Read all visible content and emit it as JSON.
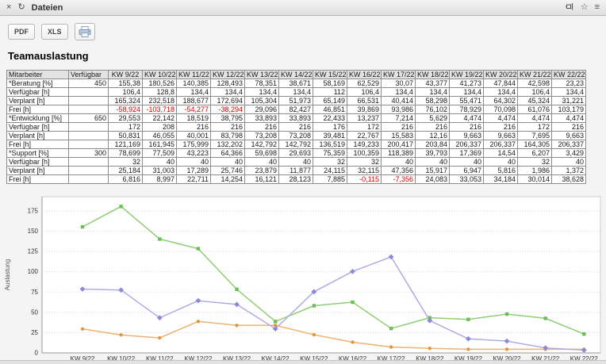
{
  "window": {
    "title": "Dateien"
  },
  "icons": {
    "close": "×",
    "refresh": "↻",
    "star": "☆",
    "menu": "≡"
  },
  "toolbar": {
    "pdf_label": "PDF",
    "xls_label": "XLS"
  },
  "page": {
    "title": "Teamauslastung"
  },
  "table": {
    "columns": [
      "Mitarbeiter",
      "Verfügbar",
      "KW 9/22",
      "KW 10/22",
      "KW 11/22",
      "KW 12/22",
      "KW 13/22",
      "KW 14/22",
      "KW 15/22",
      "KW 16/22",
      "KW 17/22",
      "KW 18/22",
      "KW 19/22",
      "KW 20/22",
      "KW 21/22",
      "KW 22/22"
    ],
    "rows": [
      {
        "label": "*Beratung [%]",
        "available": "450",
        "values": [
          "155,38",
          "180,526",
          "140,385",
          "128,493",
          "78,351",
          "38,671",
          "58,169",
          "62,529",
          "30,07",
          "43,377",
          "41,273",
          "47,844",
          "42,598",
          "23,23"
        ]
      },
      {
        "label": "Verfügbar [h]",
        "available": "",
        "values": [
          "106,4",
          "128,8",
          "134,4",
          "134,4",
          "134,4",
          "134,4",
          "112",
          "106,4",
          "134,4",
          "134,4",
          "134,4",
          "134,4",
          "106,4",
          "134,4"
        ]
      },
      {
        "label": "Verplant [h]",
        "available": "",
        "values": [
          "165,324",
          "232,518",
          "188,677",
          "172,694",
          "105,304",
          "51,973",
          "65,149",
          "66,531",
          "40,414",
          "58,298",
          "55,471",
          "64,302",
          "45,324",
          "31,221"
        ]
      },
      {
        "label": "Frei [h]",
        "available": "",
        "values": [
          "-58,924",
          "-103,718",
          "-54,277",
          "-38,294",
          "29,096",
          "82,427",
          "46,851",
          "39,869",
          "93,986",
          "76,102",
          "78,929",
          "70,098",
          "61,076",
          "103,179"
        ]
      },
      {
        "label": "*Entwicklung [%]",
        "available": "650",
        "values": [
          "29,553",
          "22,142",
          "18,519",
          "38,795",
          "33,893",
          "33,893",
          "22,433",
          "13,237",
          "7,214",
          "5,629",
          "4,474",
          "4,474",
          "4,474",
          "4,474"
        ]
      },
      {
        "label": "Verfügbar [h]",
        "available": "",
        "values": [
          "172",
          "208",
          "216",
          "216",
          "216",
          "216",
          "176",
          "172",
          "216",
          "216",
          "216",
          "216",
          "172",
          "216"
        ]
      },
      {
        "label": "Verplant [h]",
        "available": "",
        "values": [
          "50,831",
          "46,055",
          "40,001",
          "83,798",
          "73,208",
          "73,208",
          "39,481",
          "22,767",
          "15,583",
          "12,16",
          "9,663",
          "9,663",
          "7,695",
          "9,663"
        ]
      },
      {
        "label": "Frei [h]",
        "available": "",
        "values": [
          "121,169",
          "161,945",
          "175,999",
          "132,202",
          "142,792",
          "142,792",
          "136,519",
          "149,233",
          "200,417",
          "203,84",
          "206,337",
          "206,337",
          "164,305",
          "206,337"
        ]
      },
      {
        "label": "*Support [%]",
        "available": "300",
        "values": [
          "78,699",
          "77,509",
          "43,223",
          "64,366",
          "59,698",
          "29,693",
          "75,359",
          "100,359",
          "118,389",
          "39,793",
          "17,369",
          "14,54",
          "6,207",
          "3,429"
        ]
      },
      {
        "label": "Verfügbar [h]",
        "available": "",
        "values": [
          "32",
          "40",
          "40",
          "40",
          "40",
          "40",
          "32",
          "32",
          "40",
          "40",
          "40",
          "40",
          "32",
          "40"
        ]
      },
      {
        "label": "Verplant [h]",
        "available": "",
        "values": [
          "25,184",
          "31,003",
          "17,289",
          "25,746",
          "23,879",
          "11,877",
          "24,115",
          "32,115",
          "47,356",
          "15,917",
          "6,947",
          "5,816",
          "1,986",
          "1,372"
        ]
      },
      {
        "label": "Frei [h]",
        "available": "",
        "values": [
          "6,816",
          "8,997",
          "22,711",
          "14,254",
          "16,121",
          "28,123",
          "7,885",
          "-0,115",
          "-7,356",
          "24,083",
          "33,053",
          "34,184",
          "30,014",
          "38,628"
        ]
      }
    ]
  },
  "chart_data": {
    "type": "line",
    "title": "",
    "xlabel": "",
    "ylabel": "Auslastung",
    "ylim": [
      0,
      192
    ],
    "yticks": [
      0,
      25,
      50,
      75,
      100,
      125,
      150,
      175
    ],
    "grid": true,
    "legend_position": "none",
    "categories": [
      "KW 9/22",
      "KW 10/22",
      "KW 11/22",
      "KW 12/22",
      "KW 13/22",
      "KW 14/22",
      "KW 15/22",
      "KW 16/22",
      "KW 17/22",
      "KW 18/22",
      "KW 19/22",
      "KW 20/22",
      "KW 21/22",
      "KW 22/22"
    ],
    "series": [
      {
        "name": "*Beratung [%]",
        "marker": "square",
        "color": "#8fce73",
        "marker_color": "#6abf56",
        "values": [
          155.38,
          180.526,
          140.385,
          128.493,
          78.351,
          38.671,
          58.169,
          62.529,
          30.07,
          43.377,
          41.273,
          47.844,
          42.598,
          23.23
        ]
      },
      {
        "name": "*Entwicklung [%]",
        "marker": "circle",
        "color": "#eeb273",
        "marker_color": "#e2973f",
        "values": [
          29.553,
          22.142,
          18.519,
          38.795,
          33.893,
          33.893,
          22.433,
          13.237,
          7.214,
          5.629,
          4.474,
          4.474,
          4.474,
          4.474
        ]
      },
      {
        "name": "*Support [%]",
        "marker": "diamond",
        "color": "#aeade3",
        "marker_color": "#8c8ad6",
        "values": [
          78.699,
          77.509,
          43.223,
          64.366,
          59.698,
          29.693,
          75.359,
          100.359,
          118.389,
          39.793,
          17.369,
          14.54,
          6.207,
          3.429
        ]
      }
    ]
  }
}
